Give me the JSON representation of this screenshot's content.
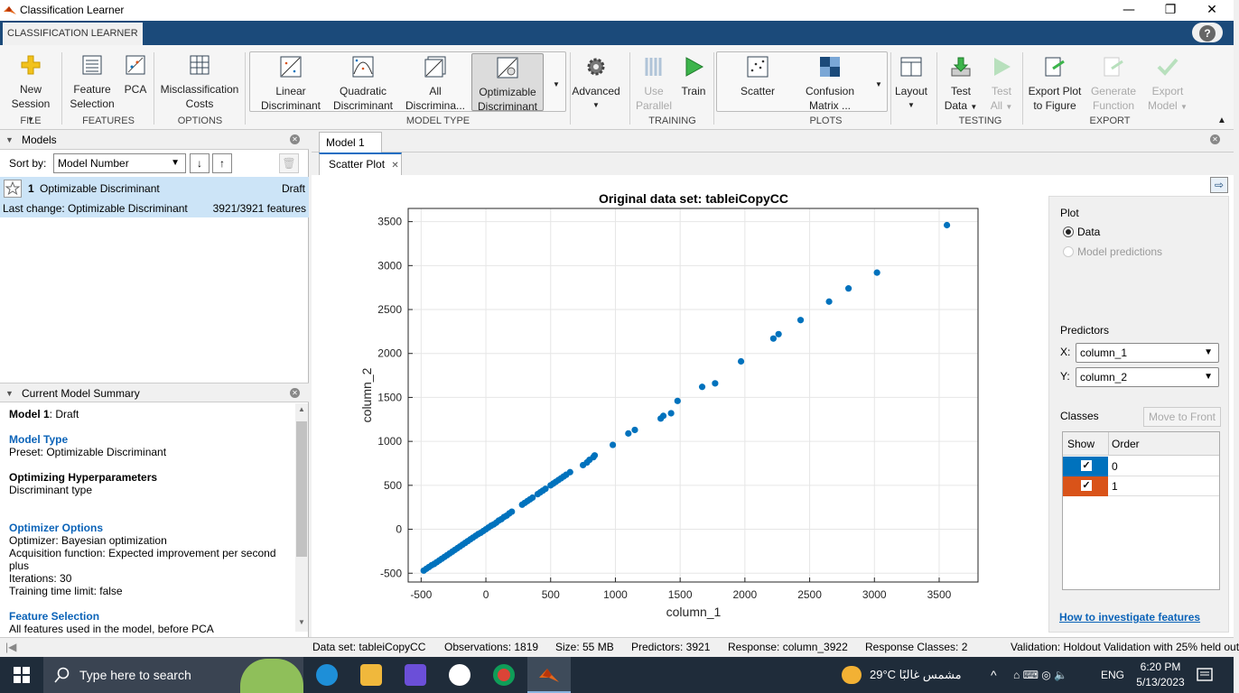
{
  "window": {
    "title": "Classification Learner",
    "min": "—",
    "restore": "❐",
    "close": "✕"
  },
  "ribbon_tab": "CLASSIFICATION LEARNER",
  "help": "?",
  "ribbon": {
    "new_session": [
      "New",
      "Session"
    ],
    "feature_selection": [
      "Feature",
      "Selection"
    ],
    "pca": "PCA",
    "misclassification_costs": [
      "Misclassification",
      "Costs"
    ],
    "linear_discriminant": [
      "Linear",
      "Discriminant"
    ],
    "quadratic_discriminant": [
      "Quadratic",
      "Discriminant"
    ],
    "all_discriminants": [
      "All",
      "Discrimina..."
    ],
    "optimizable_discriminant": [
      "Optimizable",
      "Discriminant"
    ],
    "advanced": "Advanced",
    "use_parallel": [
      "Use",
      "Parallel"
    ],
    "train": "Train",
    "scatter": "Scatter",
    "confusion_matrix": [
      "Confusion",
      "Matrix ..."
    ],
    "layout": "Layout",
    "test_data": [
      "Test",
      "Data"
    ],
    "test_all": [
      "Test",
      "All"
    ],
    "export_plot": [
      "Export Plot",
      "to Figure"
    ],
    "generate_function": [
      "Generate",
      "Function"
    ],
    "export_model": [
      "Export",
      "Model"
    ],
    "groups": {
      "file": "FILE",
      "features": "FEATURES",
      "options": "OPTIONS",
      "model_type": "MODEL TYPE",
      "training": "TRAINING",
      "plots": "PLOTS",
      "testing": "TESTING",
      "export": "EXPORT"
    }
  },
  "models_panel": {
    "title": "Models",
    "sort_label": "Sort by:",
    "sort_value": "Model Number",
    "model": {
      "number": "1",
      "name": "Optimizable Discriminant",
      "status": "Draft",
      "last_change": "Last change: Optimizable Discriminant",
      "features": "3921/3921 features"
    }
  },
  "summary_panel": {
    "title": "Current Model Summary",
    "model_line_bold": "Model 1",
    "model_line_rest": ": Draft",
    "model_type_hdr": "Model Type",
    "preset": "Preset: Optimizable Discriminant",
    "hyper_hdr": "Optimizing Hyperparameters",
    "hyper_1": "Discriminant type",
    "optimizer_hdr": "Optimizer Options",
    "opt_1": "Optimizer: Bayesian optimization",
    "opt_2": "Acquisition function: Expected improvement per second",
    "opt_3": "plus",
    "opt_4": "Iterations: 30",
    "opt_5": "Training time limit: false",
    "feature_hdr": "Feature Selection",
    "feature_1": "All features used in the model, before PCA"
  },
  "doc_tab": "Model 1",
  "plot_tab": "Scatter Plot",
  "plot_panel": {
    "plot_hdr": "Plot",
    "data": "Data",
    "model_predictions": "Model predictions",
    "predictors_hdr": "Predictors",
    "x_label": "X:",
    "x_value": "column_1",
    "y_label": "Y:",
    "y_value": "column_2",
    "classes_hdr": "Classes",
    "move_to_front": "Move to Front",
    "col_show": "Show",
    "col_order": "Order",
    "classes": [
      {
        "label": "0",
        "color": "#0072bd"
      },
      {
        "label": "1",
        "color": "#d95319"
      }
    ],
    "how_to": "How to investigate features"
  },
  "chart_data": {
    "type": "scatter",
    "title": "Original data set: tableiCopyCC",
    "xlabel": "column_1",
    "ylabel": "column_2",
    "xlim": [
      -600,
      3800
    ],
    "ylim": [
      -600,
      3650
    ],
    "xticks": [
      -500,
      0,
      500,
      1000,
      1500,
      2000,
      2500,
      3000,
      3500
    ],
    "yticks": [
      -500,
      0,
      500,
      1000,
      1500,
      2000,
      2500,
      3000,
      3500
    ],
    "grid": true,
    "color": "#0072bd",
    "x": [
      -480,
      -460,
      -440,
      -420,
      -400,
      -380,
      -360,
      -340,
      -320,
      -300,
      -280,
      -260,
      -240,
      -220,
      -200,
      -180,
      -160,
      -140,
      -120,
      -100,
      -80,
      -60,
      -40,
      -20,
      0,
      20,
      40,
      60,
      80,
      100,
      120,
      140,
      160,
      180,
      200,
      280,
      300,
      320,
      340,
      360,
      400,
      420,
      440,
      460,
      500,
      520,
      540,
      560,
      580,
      600,
      620,
      650,
      750,
      780,
      800,
      830,
      840,
      980,
      1100,
      1150,
      1350,
      1370,
      1430,
      1480,
      1670,
      1770,
      1970,
      2220,
      2260,
      2430,
      2650,
      2800,
      3020,
      3560
    ],
    "y": [
      -470,
      -450,
      -430,
      -410,
      -395,
      -375,
      -355,
      -335,
      -315,
      -295,
      -275,
      -255,
      -235,
      -215,
      -195,
      -175,
      -155,
      -135,
      -115,
      -95,
      -75,
      -55,
      -40,
      -20,
      0,
      20,
      40,
      55,
      75,
      100,
      115,
      140,
      155,
      180,
      200,
      280,
      300,
      320,
      340,
      360,
      400,
      420,
      440,
      460,
      500,
      520,
      540,
      560,
      580,
      600,
      620,
      650,
      730,
      760,
      790,
      820,
      840,
      960,
      1090,
      1130,
      1260,
      1290,
      1320,
      1460,
      1620,
      1660,
      1910,
      2170,
      2220,
      2380,
      2590,
      2740,
      2920,
      3460
    ]
  },
  "status": {
    "dataset": "Data set: tableiCopyCC",
    "observations": "Observations: 1819",
    "size": "Size: 55 MB",
    "predictors": "Predictors: 3921",
    "response": "Response: column_3922",
    "response_classes": "Response Classes: 2",
    "validation": "Validation: Holdout Validation with 25% held out"
  },
  "taskbar": {
    "search_placeholder": "Type here to search",
    "weather": "29°C  مشمس غالبًا",
    "lang": "ENG",
    "time": "6:20 PM",
    "date": "5/13/2023"
  }
}
